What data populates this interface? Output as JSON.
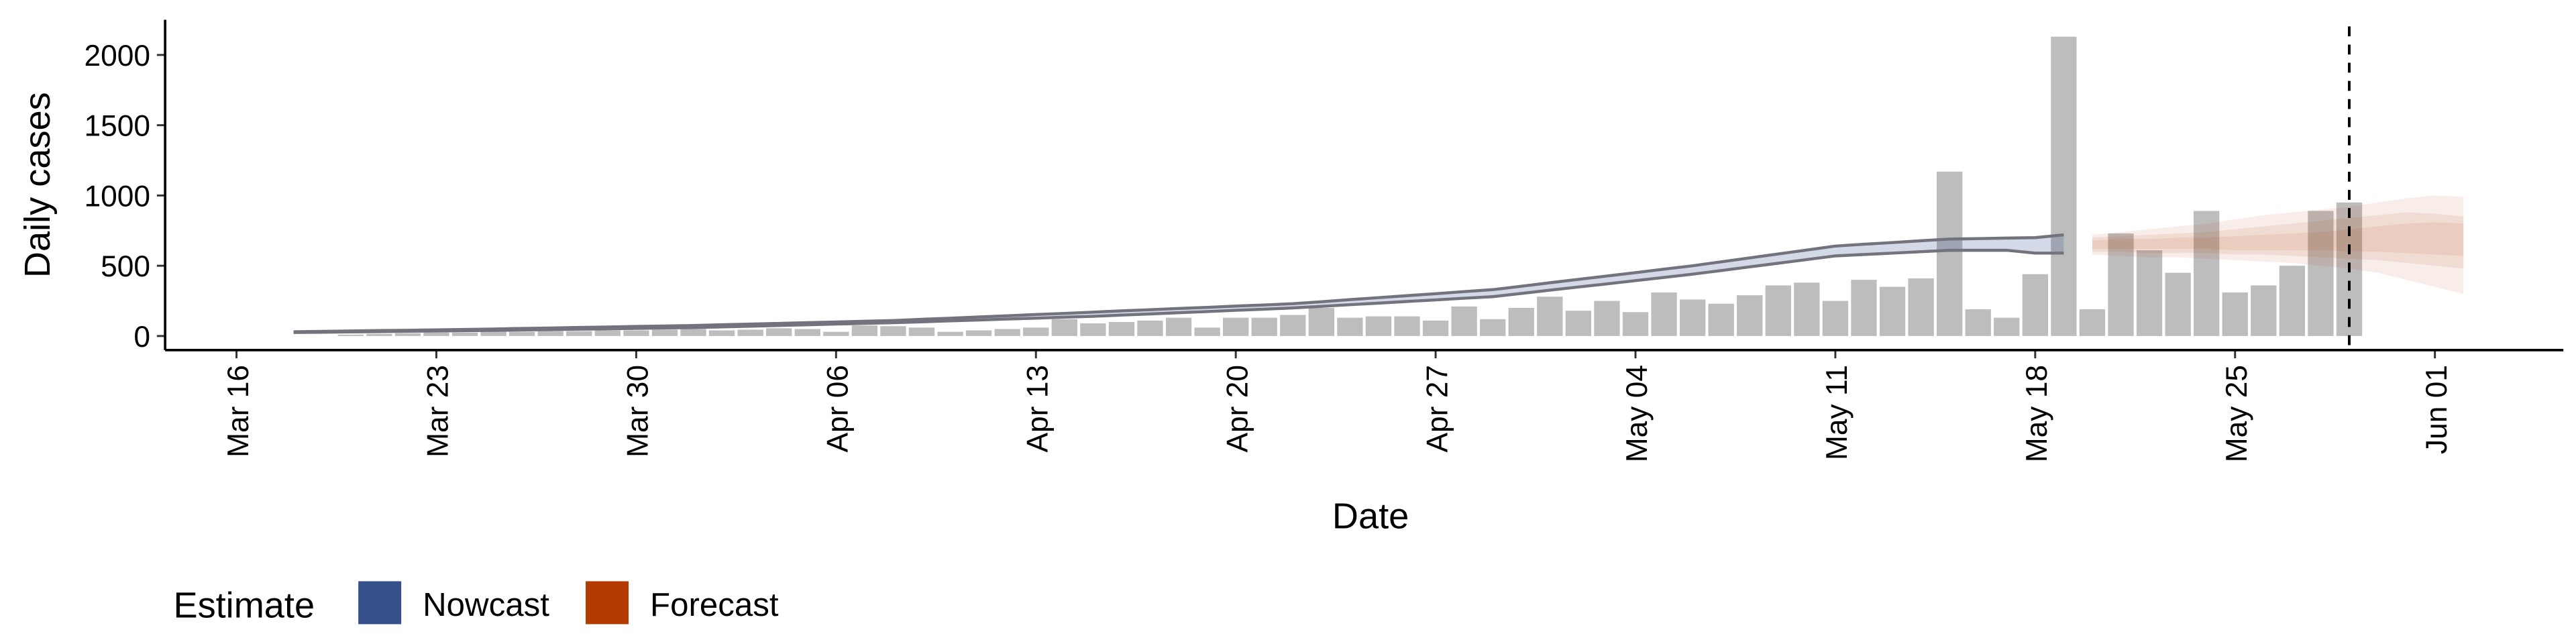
{
  "chart_data": {
    "type": "bar",
    "x_label": "Date",
    "y_label": "Daily cases",
    "legend_title": "Estimate",
    "ylim": [
      -100,
      2250
    ],
    "yticks": [
      0,
      500,
      1000,
      1500,
      2000
    ],
    "categories": [
      null,
      null,
      "Mar 16",
      null,
      null,
      null,
      null,
      null,
      null,
      "Mar 23",
      null,
      null,
      null,
      null,
      null,
      null,
      "Mar 30",
      null,
      null,
      null,
      null,
      null,
      null,
      "Apr 06",
      null,
      null,
      null,
      null,
      null,
      null,
      "Apr 13",
      null,
      null,
      null,
      null,
      null,
      null,
      "Apr 20",
      null,
      null,
      null,
      null,
      null,
      null,
      "Apr 27",
      null,
      null,
      null,
      null,
      null,
      null,
      "May 04",
      null,
      null,
      null,
      null,
      null,
      null,
      "May 11",
      null,
      null,
      null,
      null,
      null,
      null,
      "May 18",
      null,
      null,
      null,
      null,
      null,
      null,
      "May 25",
      null,
      null,
      null,
      null,
      null,
      null,
      "Jun 01",
      null,
      null,
      null,
      null
    ],
    "values": [
      null,
      null,
      null,
      null,
      null,
      null,
      10,
      15,
      20,
      25,
      25,
      30,
      30,
      35,
      35,
      40,
      40,
      45,
      50,
      40,
      45,
      55,
      50,
      30,
      75,
      70,
      60,
      30,
      40,
      50,
      60,
      120,
      90,
      100,
      110,
      130,
      60,
      130,
      130,
      150,
      200,
      130,
      140,
      140,
      110,
      210,
      120,
      200,
      280,
      180,
      250,
      170,
      310,
      260,
      230,
      290,
      360,
      380,
      250,
      400,
      350,
      410,
      1170,
      190,
      130,
      440,
      2130,
      190,
      730,
      610,
      450,
      890,
      310,
      360,
      500,
      890,
      950,
      null,
      null,
      null,
      null,
      null,
      null,
      null
    ],
    "bar_color": "#bdbdbd",
    "nowcast": {
      "name": "Nowcast",
      "color": "#35508b",
      "line_color": "#73737e",
      "upper": [
        null,
        null,
        null,
        null,
        30,
        33,
        36,
        39,
        41,
        44,
        47,
        50,
        54,
        57,
        61,
        64,
        68,
        71,
        75,
        80,
        85,
        90,
        95,
        100,
        105,
        110,
        119,
        127,
        136,
        144,
        153,
        161,
        170,
        179,
        187,
        196,
        204,
        213,
        221,
        230,
        244,
        259,
        273,
        287,
        301,
        316,
        330,
        354,
        379,
        403,
        427,
        451,
        476,
        500,
        528,
        556,
        584,
        612,
        640,
        653,
        665,
        678,
        690,
        693,
        697,
        700,
        720,
        null,
        null,
        null,
        null,
        null,
        null,
        null,
        null,
        null,
        null,
        null,
        null,
        null,
        null,
        null,
        null,
        null
      ],
      "lower": [
        null,
        null,
        null,
        null,
        25,
        27,
        29,
        31,
        34,
        36,
        38,
        40,
        43,
        46,
        49,
        51,
        54,
        57,
        60,
        65,
        70,
        75,
        80,
        85,
        90,
        95,
        101,
        108,
        114,
        121,
        127,
        134,
        140,
        149,
        157,
        166,
        174,
        183,
        191,
        200,
        211,
        223,
        234,
        246,
        257,
        269,
        280,
        303,
        326,
        349,
        371,
        394,
        417,
        440,
        466,
        492,
        518,
        544,
        570,
        580,
        590,
        600,
        610,
        610,
        610,
        590,
        590,
        null,
        null,
        null,
        null,
        null,
        null,
        null,
        null,
        null,
        null,
        null,
        null,
        null,
        null,
        null,
        null,
        null
      ]
    },
    "forecast": {
      "name": "Forecast",
      "color": "#b33a00",
      "bands": [
        {
          "upper": [
            null,
            null,
            null,
            null,
            null,
            null,
            null,
            null,
            null,
            null,
            null,
            null,
            null,
            null,
            null,
            null,
            null,
            null,
            null,
            null,
            null,
            null,
            null,
            null,
            null,
            null,
            null,
            null,
            null,
            null,
            null,
            null,
            null,
            null,
            null,
            null,
            null,
            null,
            null,
            null,
            null,
            null,
            null,
            null,
            null,
            null,
            null,
            null,
            null,
            null,
            null,
            null,
            null,
            null,
            null,
            null,
            null,
            null,
            null,
            null,
            null,
            null,
            null,
            null,
            null,
            null,
            null,
            720,
            740,
            760,
            780,
            800,
            830,
            860,
            880,
            900,
            920,
            950,
            980,
            1000,
            990,
            null,
            null,
            null
          ],
          "lower": [
            null,
            null,
            null,
            null,
            null,
            null,
            null,
            null,
            null,
            null,
            null,
            null,
            null,
            null,
            null,
            null,
            null,
            null,
            null,
            null,
            null,
            null,
            null,
            null,
            null,
            null,
            null,
            null,
            null,
            null,
            null,
            null,
            null,
            null,
            null,
            null,
            null,
            null,
            null,
            null,
            null,
            null,
            null,
            null,
            null,
            null,
            null,
            null,
            null,
            null,
            null,
            null,
            null,
            null,
            null,
            null,
            null,
            null,
            null,
            null,
            null,
            null,
            null,
            null,
            null,
            null,
            null,
            580,
            570,
            560,
            560,
            550,
            540,
            530,
            520,
            500,
            480,
            450,
            400,
            350,
            300,
            null,
            null,
            null
          ]
        },
        {
          "upper": [
            null,
            null,
            null,
            null,
            null,
            null,
            null,
            null,
            null,
            null,
            null,
            null,
            null,
            null,
            null,
            null,
            null,
            null,
            null,
            null,
            null,
            null,
            null,
            null,
            null,
            null,
            null,
            null,
            null,
            null,
            null,
            null,
            null,
            null,
            null,
            null,
            null,
            null,
            null,
            null,
            null,
            null,
            null,
            null,
            null,
            null,
            null,
            null,
            null,
            null,
            null,
            null,
            null,
            null,
            null,
            null,
            null,
            null,
            null,
            null,
            null,
            null,
            null,
            null,
            null,
            null,
            null,
            700,
            710,
            720,
            730,
            740,
            760,
            780,
            800,
            820,
            840,
            860,
            880,
            870,
            850,
            null,
            null,
            null
          ],
          "lower": [
            null,
            null,
            null,
            null,
            null,
            null,
            null,
            null,
            null,
            null,
            null,
            null,
            null,
            null,
            null,
            null,
            null,
            null,
            null,
            null,
            null,
            null,
            null,
            null,
            null,
            null,
            null,
            null,
            null,
            null,
            null,
            null,
            null,
            null,
            null,
            null,
            null,
            null,
            null,
            null,
            null,
            null,
            null,
            null,
            null,
            null,
            null,
            null,
            null,
            null,
            null,
            null,
            null,
            null,
            null,
            null,
            null,
            null,
            null,
            null,
            null,
            null,
            null,
            null,
            null,
            null,
            null,
            600,
            600,
            590,
            590,
            590,
            580,
            580,
            570,
            560,
            550,
            540,
            520,
            500,
            480,
            null,
            null,
            null
          ]
        },
        {
          "upper": [
            null,
            null,
            null,
            null,
            null,
            null,
            null,
            null,
            null,
            null,
            null,
            null,
            null,
            null,
            null,
            null,
            null,
            null,
            null,
            null,
            null,
            null,
            null,
            null,
            null,
            null,
            null,
            null,
            null,
            null,
            null,
            null,
            null,
            null,
            null,
            null,
            null,
            null,
            null,
            null,
            null,
            null,
            null,
            null,
            null,
            null,
            null,
            null,
            null,
            null,
            null,
            null,
            null,
            null,
            null,
            null,
            null,
            null,
            null,
            null,
            null,
            null,
            null,
            null,
            null,
            null,
            null,
            680,
            690,
            690,
            700,
            700,
            710,
            720,
            730,
            740,
            760,
            780,
            800,
            810,
            800,
            null,
            null,
            null
          ],
          "lower": [
            null,
            null,
            null,
            null,
            null,
            null,
            null,
            null,
            null,
            null,
            null,
            null,
            null,
            null,
            null,
            null,
            null,
            null,
            null,
            null,
            null,
            null,
            null,
            null,
            null,
            null,
            null,
            null,
            null,
            null,
            null,
            null,
            null,
            null,
            null,
            null,
            null,
            null,
            null,
            null,
            null,
            null,
            null,
            null,
            null,
            null,
            null,
            null,
            null,
            null,
            null,
            null,
            null,
            null,
            null,
            null,
            null,
            null,
            null,
            null,
            null,
            null,
            null,
            null,
            null,
            null,
            null,
            620,
            620,
            620,
            620,
            620,
            610,
            610,
            610,
            610,
            600,
            600,
            590,
            580,
            570,
            null,
            null,
            null
          ]
        }
      ]
    }
  }
}
